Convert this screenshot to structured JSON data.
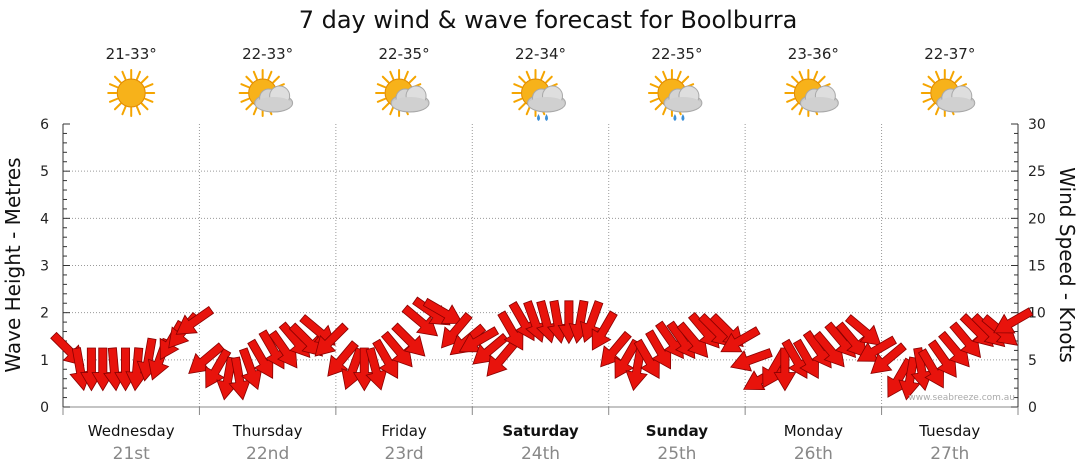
{
  "chart_data": {
    "type": "line",
    "title": "7 day wind & wave forecast for Boolburra",
    "y_left": {
      "label": "Wave Height - Metres",
      "range": [
        0,
        6
      ],
      "ticks": [
        "0",
        "1",
        "2",
        "3",
        "4",
        "5",
        "6"
      ]
    },
    "y_right": {
      "label": "Wind Speed - Knots",
      "range": [
        0,
        30
      ],
      "ticks": [
        "0",
        "5",
        "10",
        "15",
        "20",
        "25",
        "30"
      ]
    },
    "grid": true,
    "days": [
      {
        "name": "Wednesday",
        "date": "21st",
        "temp": "21-33°",
        "weather": "sunny-icon",
        "bold": false
      },
      {
        "name": "Thursday",
        "date": "22nd",
        "temp": "22-33°",
        "weather": "partly-cloudy-icon",
        "bold": false
      },
      {
        "name": "Friday",
        "date": "23rd",
        "temp": "22-35°",
        "weather": "partly-cloudy-icon",
        "bold": false
      },
      {
        "name": "Saturday",
        "date": "24th",
        "temp": "22-34°",
        "weather": "showers-icon",
        "bold": true
      },
      {
        "name": "Sunday",
        "date": "25th",
        "temp": "22-35°",
        "weather": "showers-icon",
        "bold": true
      },
      {
        "name": "Monday",
        "date": "26th",
        "temp": "23-36°",
        "weather": "partly-cloudy-icon",
        "bold": false
      },
      {
        "name": "Tuesday",
        "date": "27th",
        "temp": "22-37°",
        "weather": "partly-cloudy-icon",
        "bold": false
      }
    ],
    "series": [
      {
        "name": "Wind Speed - Knots",
        "axis": "right",
        "values_per_day": [
          [
            6,
            4,
            4,
            4,
            4,
            4,
            4,
            5,
            5,
            7,
            8,
            9
          ],
          [
            5,
            4,
            3,
            3,
            4,
            5,
            6,
            6,
            7,
            7,
            8,
            7
          ],
          [
            5,
            4,
            4,
            4,
            5,
            6,
            7,
            9,
            10,
            10,
            8,
            7
          ],
          [
            7,
            6,
            5,
            8,
            9,
            9,
            9,
            9,
            9,
            9,
            9,
            8
          ],
          [
            6,
            5,
            4,
            5,
            6,
            7,
            7,
            7,
            8,
            8,
            8,
            7
          ],
          [
            5,
            3,
            4,
            4,
            5,
            5,
            6,
            6,
            7,
            7,
            8,
            6
          ],
          [
            5,
            3,
            3,
            4,
            4,
            5,
            6,
            7,
            8,
            8,
            8,
            9
          ]
        ],
        "directions_deg_per_day": [
          [
            45,
            80,
            90,
            90,
            85,
            90,
            95,
            100,
            110,
            120,
            130,
            145
          ],
          [
            140,
            120,
            100,
            80,
            70,
            60,
            60,
            55,
            50,
            45,
            40,
            135
          ],
          [
            130,
            110,
            90,
            75,
            60,
            50,
            45,
            40,
            35,
            30,
            130,
            140
          ],
          [
            150,
            140,
            130,
            60,
            60,
            70,
            75,
            80,
            90,
            100,
            110,
            120
          ],
          [
            130,
            120,
            100,
            60,
            60,
            55,
            55,
            50,
            50,
            45,
            45,
            150
          ],
          [
            160,
            150,
            120,
            90,
            60,
            60,
            55,
            50,
            50,
            50,
            40,
            150
          ],
          [
            140,
            120,
            100,
            80,
            60,
            55,
            50,
            50,
            45,
            45,
            40,
            150
          ]
        ]
      }
    ]
  },
  "credit": "www.seabreeze.com.au",
  "colors": {
    "arrow_fill": "#e8130c",
    "arrow_stroke": "#8a0000",
    "grid": "#9a9a9a",
    "axis": "#333333",
    "sun": "#f7b21a",
    "cloud": "#c8c8c8",
    "rain": "#3d8fd6"
  }
}
